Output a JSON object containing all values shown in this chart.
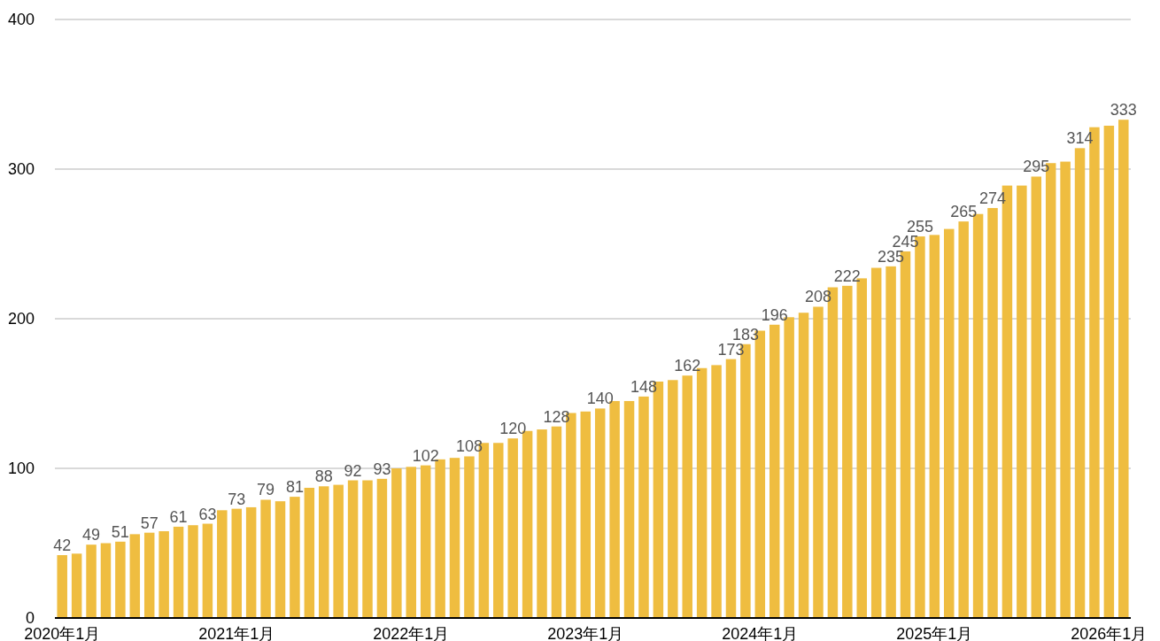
{
  "chart_data": {
    "type": "bar",
    "categories": [
      "2020年1月",
      null,
      null,
      null,
      null,
      null,
      null,
      null,
      null,
      null,
      null,
      null,
      "2021年1月",
      null,
      null,
      null,
      null,
      null,
      null,
      null,
      null,
      null,
      null,
      null,
      "2022年1月",
      null,
      null,
      null,
      null,
      null,
      null,
      null,
      null,
      null,
      null,
      null,
      "2023年1月",
      null,
      null,
      null,
      null,
      null,
      null,
      null,
      null,
      null,
      null,
      null,
      "2024年1月",
      null,
      null,
      null,
      null,
      null,
      null,
      null,
      null,
      null,
      null,
      null,
      "2025年1月",
      null,
      null,
      null,
      null,
      null,
      null,
      null,
      null,
      null,
      null,
      null,
      "2026年1月",
      null
    ],
    "values": [
      42,
      43,
      49,
      50,
      51,
      56,
      57,
      58,
      61,
      62,
      63,
      72,
      73,
      74,
      79,
      78,
      81,
      87,
      88,
      89,
      92,
      92,
      93,
      100,
      101,
      102,
      106,
      107,
      108,
      117,
      117,
      120,
      125,
      126,
      128,
      137,
      138,
      140,
      145,
      145,
      148,
      158,
      159,
      162,
      167,
      169,
      173,
      183,
      192,
      196,
      201,
      204,
      208,
      221,
      222,
      227,
      234,
      235,
      245,
      255,
      256,
      260,
      265,
      270,
      274,
      289,
      289,
      295,
      304,
      305,
      314,
      328,
      329,
      333
    ],
    "value_labels": [
      "42",
      null,
      "49",
      null,
      "51",
      null,
      "57",
      null,
      "61",
      null,
      "63",
      null,
      "73",
      null,
      "79",
      null,
      "81",
      null,
      "88",
      null,
      "92",
      null,
      "93",
      null,
      null,
      "102",
      null,
      null,
      "108",
      null,
      null,
      "120",
      null,
      null,
      "128",
      null,
      null,
      "140",
      null,
      null,
      "148",
      null,
      null,
      "162",
      null,
      null,
      "173",
      "183",
      null,
      "196",
      null,
      null,
      "208",
      null,
      "222",
      null,
      null,
      "235",
      "245",
      "255",
      null,
      null,
      "265",
      null,
      "274",
      null,
      null,
      "295",
      null,
      null,
      "314",
      null,
      null,
      "333"
    ],
    "color": "#efbd40",
    "ylim": [
      0,
      400
    ],
    "yticks": [
      0,
      100,
      200,
      300,
      400
    ],
    "grid": "y"
  }
}
